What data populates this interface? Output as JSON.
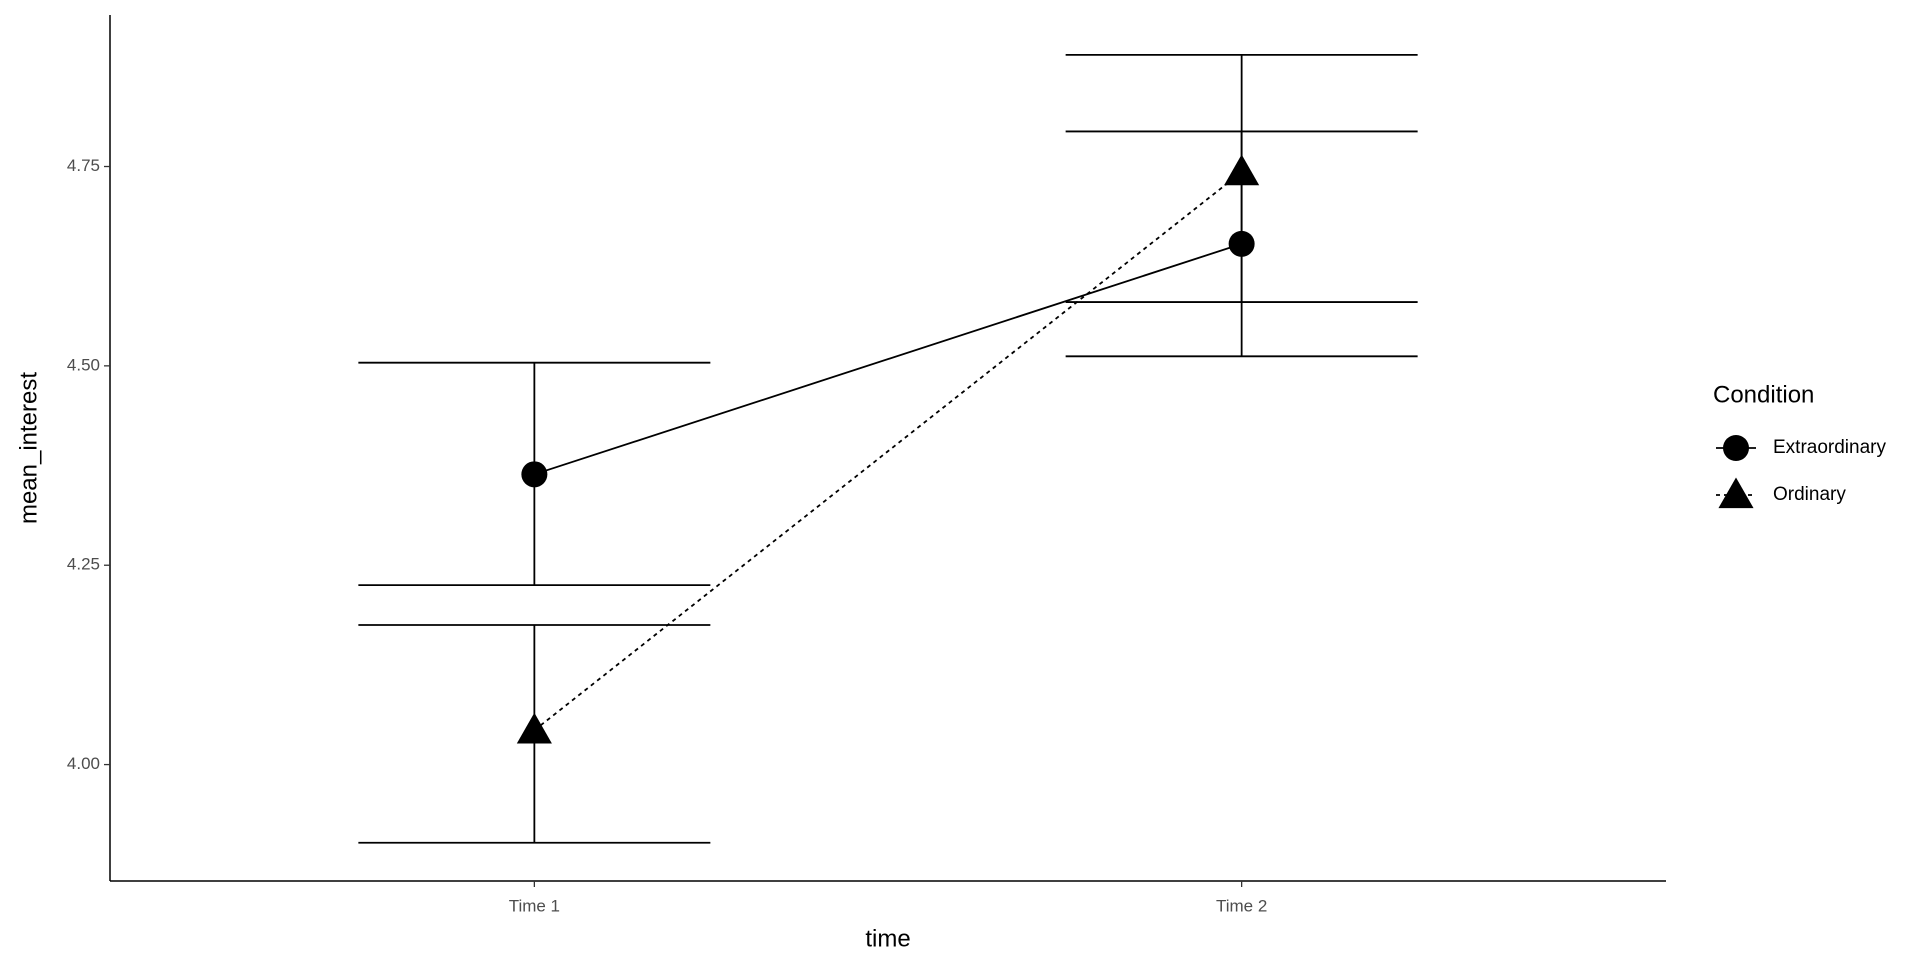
{
  "chart_data": {
    "type": "line",
    "x_label": "time",
    "y_label": "mean_interest",
    "categories": [
      "Time 1",
      "Time 2"
    ],
    "ylim": [
      3.854,
      4.94
    ],
    "yticks": [
      {
        "value": 4,
        "label": "4.00"
      },
      {
        "value": 4.25,
        "label": "4.25"
      },
      {
        "value": 4.5,
        "label": "4.50"
      },
      {
        "value": 4.75,
        "label": "4.75"
      }
    ],
    "legend_title": "Condition",
    "legend_position": "right",
    "grid": false,
    "series": [
      {
        "name": "Extraordinary",
        "color": "#000000",
        "marker": "circle",
        "linestyle": "solid",
        "values": [
          4.364,
          4.653
        ],
        "lower": [
          4.225,
          4.512
        ],
        "upper": [
          4.504,
          4.794
        ]
      },
      {
        "name": "Ordinary",
        "color": "#000000",
        "marker": "triangle",
        "linestyle": "dashed",
        "values": [
          4.043,
          4.743
        ],
        "lower": [
          3.902,
          4.58
        ],
        "upper": [
          4.175,
          4.89
        ]
      }
    ]
  }
}
